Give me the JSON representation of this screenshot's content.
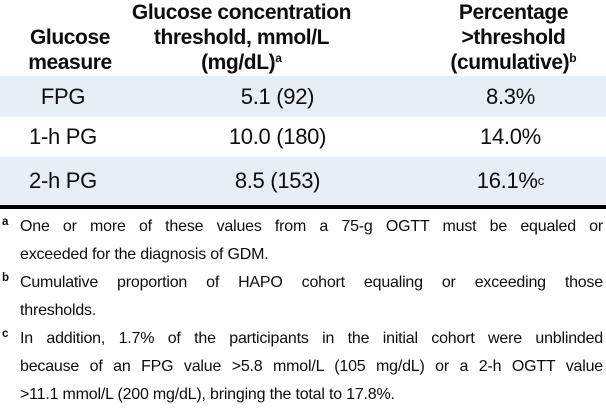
{
  "table": {
    "header": {
      "columns": [
        {
          "lines": [
            "Glucose",
            "measure"
          ],
          "sup": ""
        },
        {
          "lines": [
            "Glucose concentration",
            "threshold, mmol/L",
            "(mg/dL)"
          ],
          "sup": "a"
        },
        {
          "lines": [
            "Percentage",
            ">threshold",
            "(cumulative)"
          ],
          "sup": "b"
        }
      ]
    },
    "rows": [
      {
        "measure": "FPG",
        "threshold": "5.1 (92)",
        "percentage": "8.3%",
        "sup": ""
      },
      {
        "measure": "1-h PG",
        "threshold": "10.0 (180)",
        "percentage": "14.0%",
        "sup": ""
      },
      {
        "measure": "2-h PG",
        "threshold": "8.5 (153)",
        "percentage": "16.1%",
        "sup": "c"
      }
    ]
  },
  "footnotes": [
    {
      "marker": "a",
      "lines": [
        "One or more of these values from a 75-g OGTT must be equaled or",
        "exceeded for the diagnosis of GDM."
      ]
    },
    {
      "marker": "b",
      "lines": [
        "Cumulative proportion of HAPO cohort equaling or exceeding those",
        "thresholds."
      ]
    },
    {
      "marker": "c",
      "lines": [
        "In addition, 1.7% of the participants in the initial cohort were unblinded",
        "because of an FPG value >5.8 mmol/L (105 mg/dL) or a 2-h OGTT value",
        ">11.1 mmol/L (200 mg/dL), bringing the total to 17.8%."
      ]
    }
  ],
  "colors": {
    "row_alt": "#e8eef6",
    "text": "#0d0d0d",
    "rule": "#000000",
    "background": "#ffffff"
  }
}
